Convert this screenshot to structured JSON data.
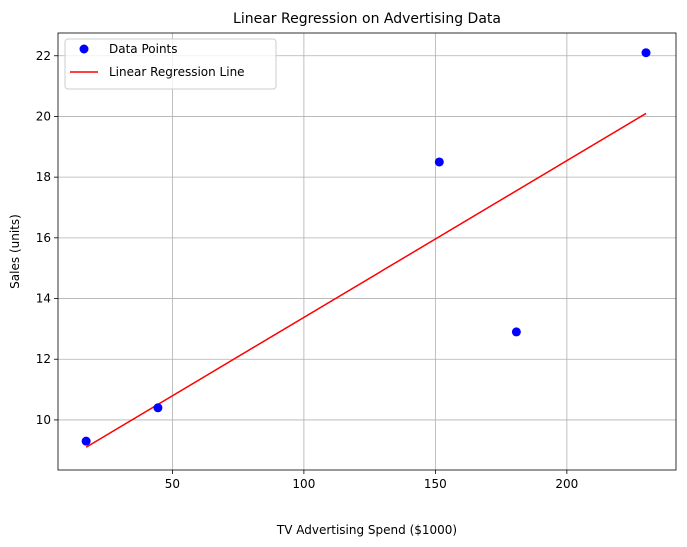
{
  "chart_data": {
    "type": "scatter",
    "title": "Linear Regression on Advertising Data",
    "xlabel": "TV Advertising Spend ($1000)",
    "ylabel": "Sales (units)",
    "xlim": [
      6.5,
      241.5
    ],
    "ylim": [
      8.35,
      22.75
    ],
    "xticks": [
      50,
      100,
      150,
      200
    ],
    "yticks": [
      10,
      12,
      14,
      16,
      18,
      20,
      22
    ],
    "grid": true,
    "legend_position": "top-left",
    "series": [
      {
        "name": "Data Points",
        "kind": "scatter",
        "color": "#0000ff",
        "x": [
          17.2,
          44.5,
          151.5,
          180.8,
          230.1
        ],
        "y": [
          9.3,
          10.4,
          18.5,
          12.9,
          22.1
        ]
      },
      {
        "name": "Linear Regression Line",
        "kind": "line",
        "color": "#ff0000",
        "x": [
          17.2,
          230.1
        ],
        "y": [
          9.1,
          20.1
        ]
      }
    ]
  }
}
